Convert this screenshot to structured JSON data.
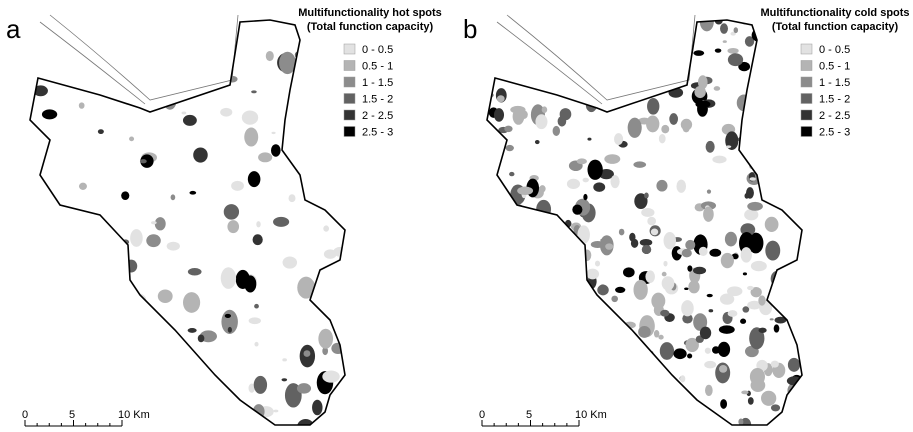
{
  "panels": [
    {
      "label": "a",
      "legend": {
        "title_lines": [
          "Multifunctionality hot spots",
          "(Total function capacity)"
        ],
        "items": [
          {
            "label": "0 - 0.5",
            "color": "#e2e2e2"
          },
          {
            "label": "0.5 - 1",
            "color": "#b4b4b4"
          },
          {
            "label": "1 - 1.5",
            "color": "#8c8c8c"
          },
          {
            "label": "1.5 - 2",
            "color": "#626262"
          },
          {
            "label": "2 - 2.5",
            "color": "#333333"
          },
          {
            "label": "2.5 - 3",
            "color": "#000000"
          }
        ]
      },
      "scale": [
        "0",
        "5",
        "10 Km"
      ]
    },
    {
      "label": "b",
      "legend": {
        "title_lines": [
          "Multifunctionality cold spots",
          "(Total function capacity)"
        ],
        "items": [
          {
            "label": "0 - 0.5",
            "color": "#e2e2e2"
          },
          {
            "label": "0.5 - 1",
            "color": "#b4b4b4"
          },
          {
            "label": "1 - 1.5",
            "color": "#8c8c8c"
          },
          {
            "label": "1.5 - 2",
            "color": "#626262"
          },
          {
            "label": "2 - 2.5",
            "color": "#333333"
          },
          {
            "label": "2.5 - 3",
            "color": "#000000"
          }
        ]
      },
      "scale": [
        "0",
        "5",
        "10 Km"
      ]
    }
  ]
}
